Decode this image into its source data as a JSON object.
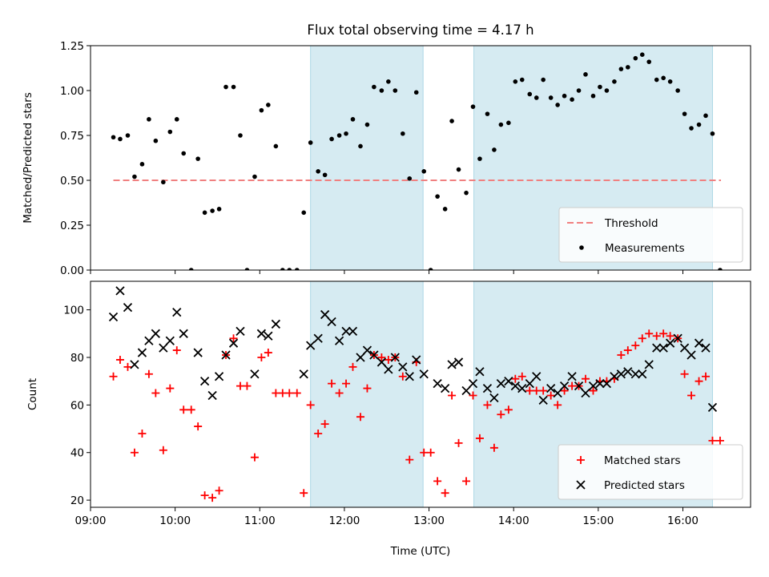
{
  "chart_data": [
    {
      "type": "scatter",
      "panel": "top",
      "title": "Flux total observing time = 4.17 h",
      "xlabel": "",
      "ylabel": "Matched/Predicted stars",
      "xlim": [
        9.0,
        16.8
      ],
      "ylim": [
        0.0,
        1.25
      ],
      "y_ticks": [
        0.0,
        0.25,
        0.5,
        0.75,
        1.0,
        1.25
      ],
      "y_tick_labels": [
        "0.00",
        "0.25",
        "0.50",
        "0.75",
        "1.00",
        "1.25"
      ],
      "x_ticks": [
        9,
        10,
        11,
        12,
        13,
        14,
        15,
        16
      ],
      "x_tick_labels_visible": false,
      "shaded_intervals": [
        [
          11.6,
          12.93
        ],
        [
          13.53,
          16.35
        ]
      ],
      "shade_color": "#add8e6",
      "grid": false,
      "legend": "lower-right",
      "series": [
        {
          "name": "Threshold",
          "kind": "dashed-line",
          "color": "#f08080",
          "x": [
            9.27,
            16.45
          ],
          "y": [
            0.5,
            0.5
          ]
        },
        {
          "name": "Measurements",
          "kind": "points",
          "color": "#000000",
          "x": [
            9.27,
            9.35,
            9.44,
            9.52,
            9.61,
            9.69,
            9.77,
            9.86,
            9.94,
            10.02,
            10.1,
            10.19,
            10.27,
            10.35,
            10.44,
            10.52,
            10.6,
            10.69,
            10.77,
            10.85,
            10.94,
            11.02,
            11.1,
            11.19,
            11.27,
            11.35,
            11.44,
            11.52,
            11.6,
            11.69,
            11.77,
            11.85,
            11.94,
            12.02,
            12.1,
            12.19,
            12.27,
            12.35,
            12.44,
            12.52,
            12.6,
            12.69,
            12.77,
            12.85,
            12.94,
            13.02,
            13.1,
            13.19,
            13.27,
            13.35,
            13.44,
            13.52,
            13.6,
            13.69,
            13.77,
            13.85,
            13.94,
            14.02,
            14.1,
            14.19,
            14.27,
            14.35,
            14.44,
            14.52,
            14.6,
            14.69,
            14.77,
            14.85,
            14.94,
            15.02,
            15.1,
            15.19,
            15.27,
            15.35,
            15.44,
            15.52,
            15.6,
            15.69,
            15.77,
            15.85,
            15.94,
            16.02,
            16.1,
            16.19,
            16.27,
            16.35,
            16.44
          ],
          "y": [
            0.74,
            0.73,
            0.75,
            0.52,
            0.59,
            0.84,
            0.72,
            0.49,
            0.77,
            0.84,
            0.65,
            0.0,
            0.62,
            0.32,
            0.33,
            0.34,
            1.02,
            1.02,
            0.75,
            0.0,
            0.52,
            0.89,
            0.92,
            0.69,
            0.0,
            0.0,
            0.0,
            0.32,
            0.71,
            0.55,
            0.53,
            0.73,
            0.75,
            0.76,
            0.84,
            0.69,
            0.81,
            1.02,
            1.0,
            1.05,
            1.0,
            0.76,
            0.51,
            0.99,
            0.55,
            0.0,
            0.41,
            0.34,
            0.83,
            0.56,
            0.43,
            0.91,
            0.62,
            0.87,
            0.67,
            0.81,
            0.82,
            1.05,
            1.06,
            0.98,
            0.96,
            1.06,
            0.96,
            0.92,
            0.97,
            0.95,
            1.0,
            1.09,
            0.97,
            1.02,
            1.0,
            1.05,
            1.12,
            1.13,
            1.18,
            1.2,
            1.16,
            1.06,
            1.07,
            1.05,
            1.0,
            0.87,
            0.79,
            0.81,
            0.86,
            0.76,
            0.0
          ]
        }
      ]
    },
    {
      "type": "scatter",
      "panel": "bottom",
      "title": "",
      "xlabel": "Time (UTC)",
      "ylabel": "Count",
      "xlim": [
        9.0,
        16.8
      ],
      "ylim": [
        17,
        112
      ],
      "y_ticks": [
        20,
        40,
        60,
        80,
        100
      ],
      "y_tick_labels": [
        "20",
        "40",
        "60",
        "80",
        "100"
      ],
      "x_ticks": [
        9,
        10,
        11,
        12,
        13,
        14,
        15,
        16
      ],
      "x_tick_labels": [
        "09:00",
        "10:00",
        "11:00",
        "12:00",
        "13:00",
        "14:00",
        "15:00",
        "16:00"
      ],
      "shaded_intervals": [
        [
          11.6,
          12.93
        ],
        [
          13.53,
          16.35
        ]
      ],
      "shade_color": "#add8e6",
      "grid": false,
      "legend": "lower-right",
      "series": [
        {
          "name": "Matched stars",
          "marker": "plus",
          "color": "#ff0000",
          "x": [
            9.27,
            9.35,
            9.44,
            9.52,
            9.61,
            9.69,
            9.77,
            9.86,
            9.94,
            10.02,
            10.1,
            10.19,
            10.27,
            10.35,
            10.44,
            10.52,
            10.6,
            10.69,
            10.77,
            10.85,
            10.94,
            11.02,
            11.1,
            11.19,
            11.27,
            11.35,
            11.44,
            11.52,
            11.6,
            11.69,
            11.77,
            11.85,
            11.94,
            12.02,
            12.1,
            12.19,
            12.27,
            12.35,
            12.44,
            12.52,
            12.6,
            12.69,
            12.77,
            12.85,
            12.94,
            13.02,
            13.1,
            13.19,
            13.27,
            13.35,
            13.44,
            13.52,
            13.6,
            13.69,
            13.77,
            13.85,
            13.94,
            14.02,
            14.1,
            14.19,
            14.27,
            14.35,
            14.44,
            14.52,
            14.6,
            14.69,
            14.77,
            14.85,
            14.94,
            15.02,
            15.1,
            15.19,
            15.27,
            15.35,
            15.44,
            15.52,
            15.6,
            15.69,
            15.77,
            15.85,
            15.94,
            16.02,
            16.1,
            16.19,
            16.27,
            16.35,
            16.44
          ],
          "y": [
            72,
            79,
            76,
            40,
            48,
            73,
            65,
            41,
            67,
            83,
            58,
            58,
            51,
            22,
            21,
            24,
            81,
            88,
            68,
            68,
            38,
            80,
            82,
            65,
            65,
            65,
            65,
            23,
            60,
            48,
            52,
            69,
            65,
            69,
            76,
            55,
            67,
            81,
            80,
            79,
            80,
            72,
            37,
            78,
            40,
            40,
            28,
            23,
            64,
            44,
            28,
            64,
            46,
            60,
            42,
            56,
            58,
            71,
            72,
            66,
            66,
            66,
            64,
            60,
            66,
            68,
            68,
            71,
            66,
            70,
            70,
            71,
            81,
            83,
            85,
            88,
            90,
            89,
            90,
            89,
            88,
            73,
            64,
            70,
            72,
            45,
            45
          ]
        },
        {
          "name": "Predicted stars",
          "marker": "x",
          "color": "#000000",
          "x": [
            9.27,
            9.35,
            9.44,
            9.52,
            9.61,
            9.69,
            9.77,
            9.86,
            9.94,
            10.02,
            10.1,
            10.27,
            10.35,
            10.44,
            10.52,
            10.6,
            10.69,
            10.77,
            10.94,
            11.02,
            11.1,
            11.19,
            11.52,
            11.6,
            11.69,
            11.77,
            11.85,
            11.94,
            12.02,
            12.1,
            12.19,
            12.27,
            12.35,
            12.44,
            12.52,
            12.6,
            12.69,
            12.77,
            12.85,
            12.94,
            13.1,
            13.19,
            13.27,
            13.35,
            13.44,
            13.52,
            13.6,
            13.69,
            13.77,
            13.85,
            13.94,
            14.02,
            14.1,
            14.19,
            14.27,
            14.35,
            14.44,
            14.52,
            14.6,
            14.69,
            14.77,
            14.85,
            14.94,
            15.02,
            15.1,
            15.19,
            15.27,
            15.35,
            15.44,
            15.52,
            15.6,
            15.69,
            15.77,
            15.85,
            15.94,
            16.02,
            16.1,
            16.19,
            16.27,
            16.35
          ],
          "y": [
            97,
            108,
            101,
            77,
            82,
            87,
            90,
            84,
            87,
            99,
            90,
            82,
            70,
            64,
            72,
            81,
            86,
            91,
            73,
            90,
            89,
            94,
            73,
            85,
            88,
            98,
            95,
            87,
            91,
            91,
            80,
            83,
            81,
            78,
            75,
            80,
            76,
            72,
            79,
            73,
            69,
            67,
            77,
            78,
            66,
            69,
            74,
            67,
            63,
            69,
            70,
            68,
            67,
            69,
            72,
            62,
            67,
            65,
            68,
            72,
            68,
            65,
            68,
            69,
            69,
            72,
            73,
            74,
            73,
            73,
            77,
            84,
            84,
            86,
            88,
            84,
            81,
            86,
            84,
            59
          ]
        }
      ]
    }
  ]
}
